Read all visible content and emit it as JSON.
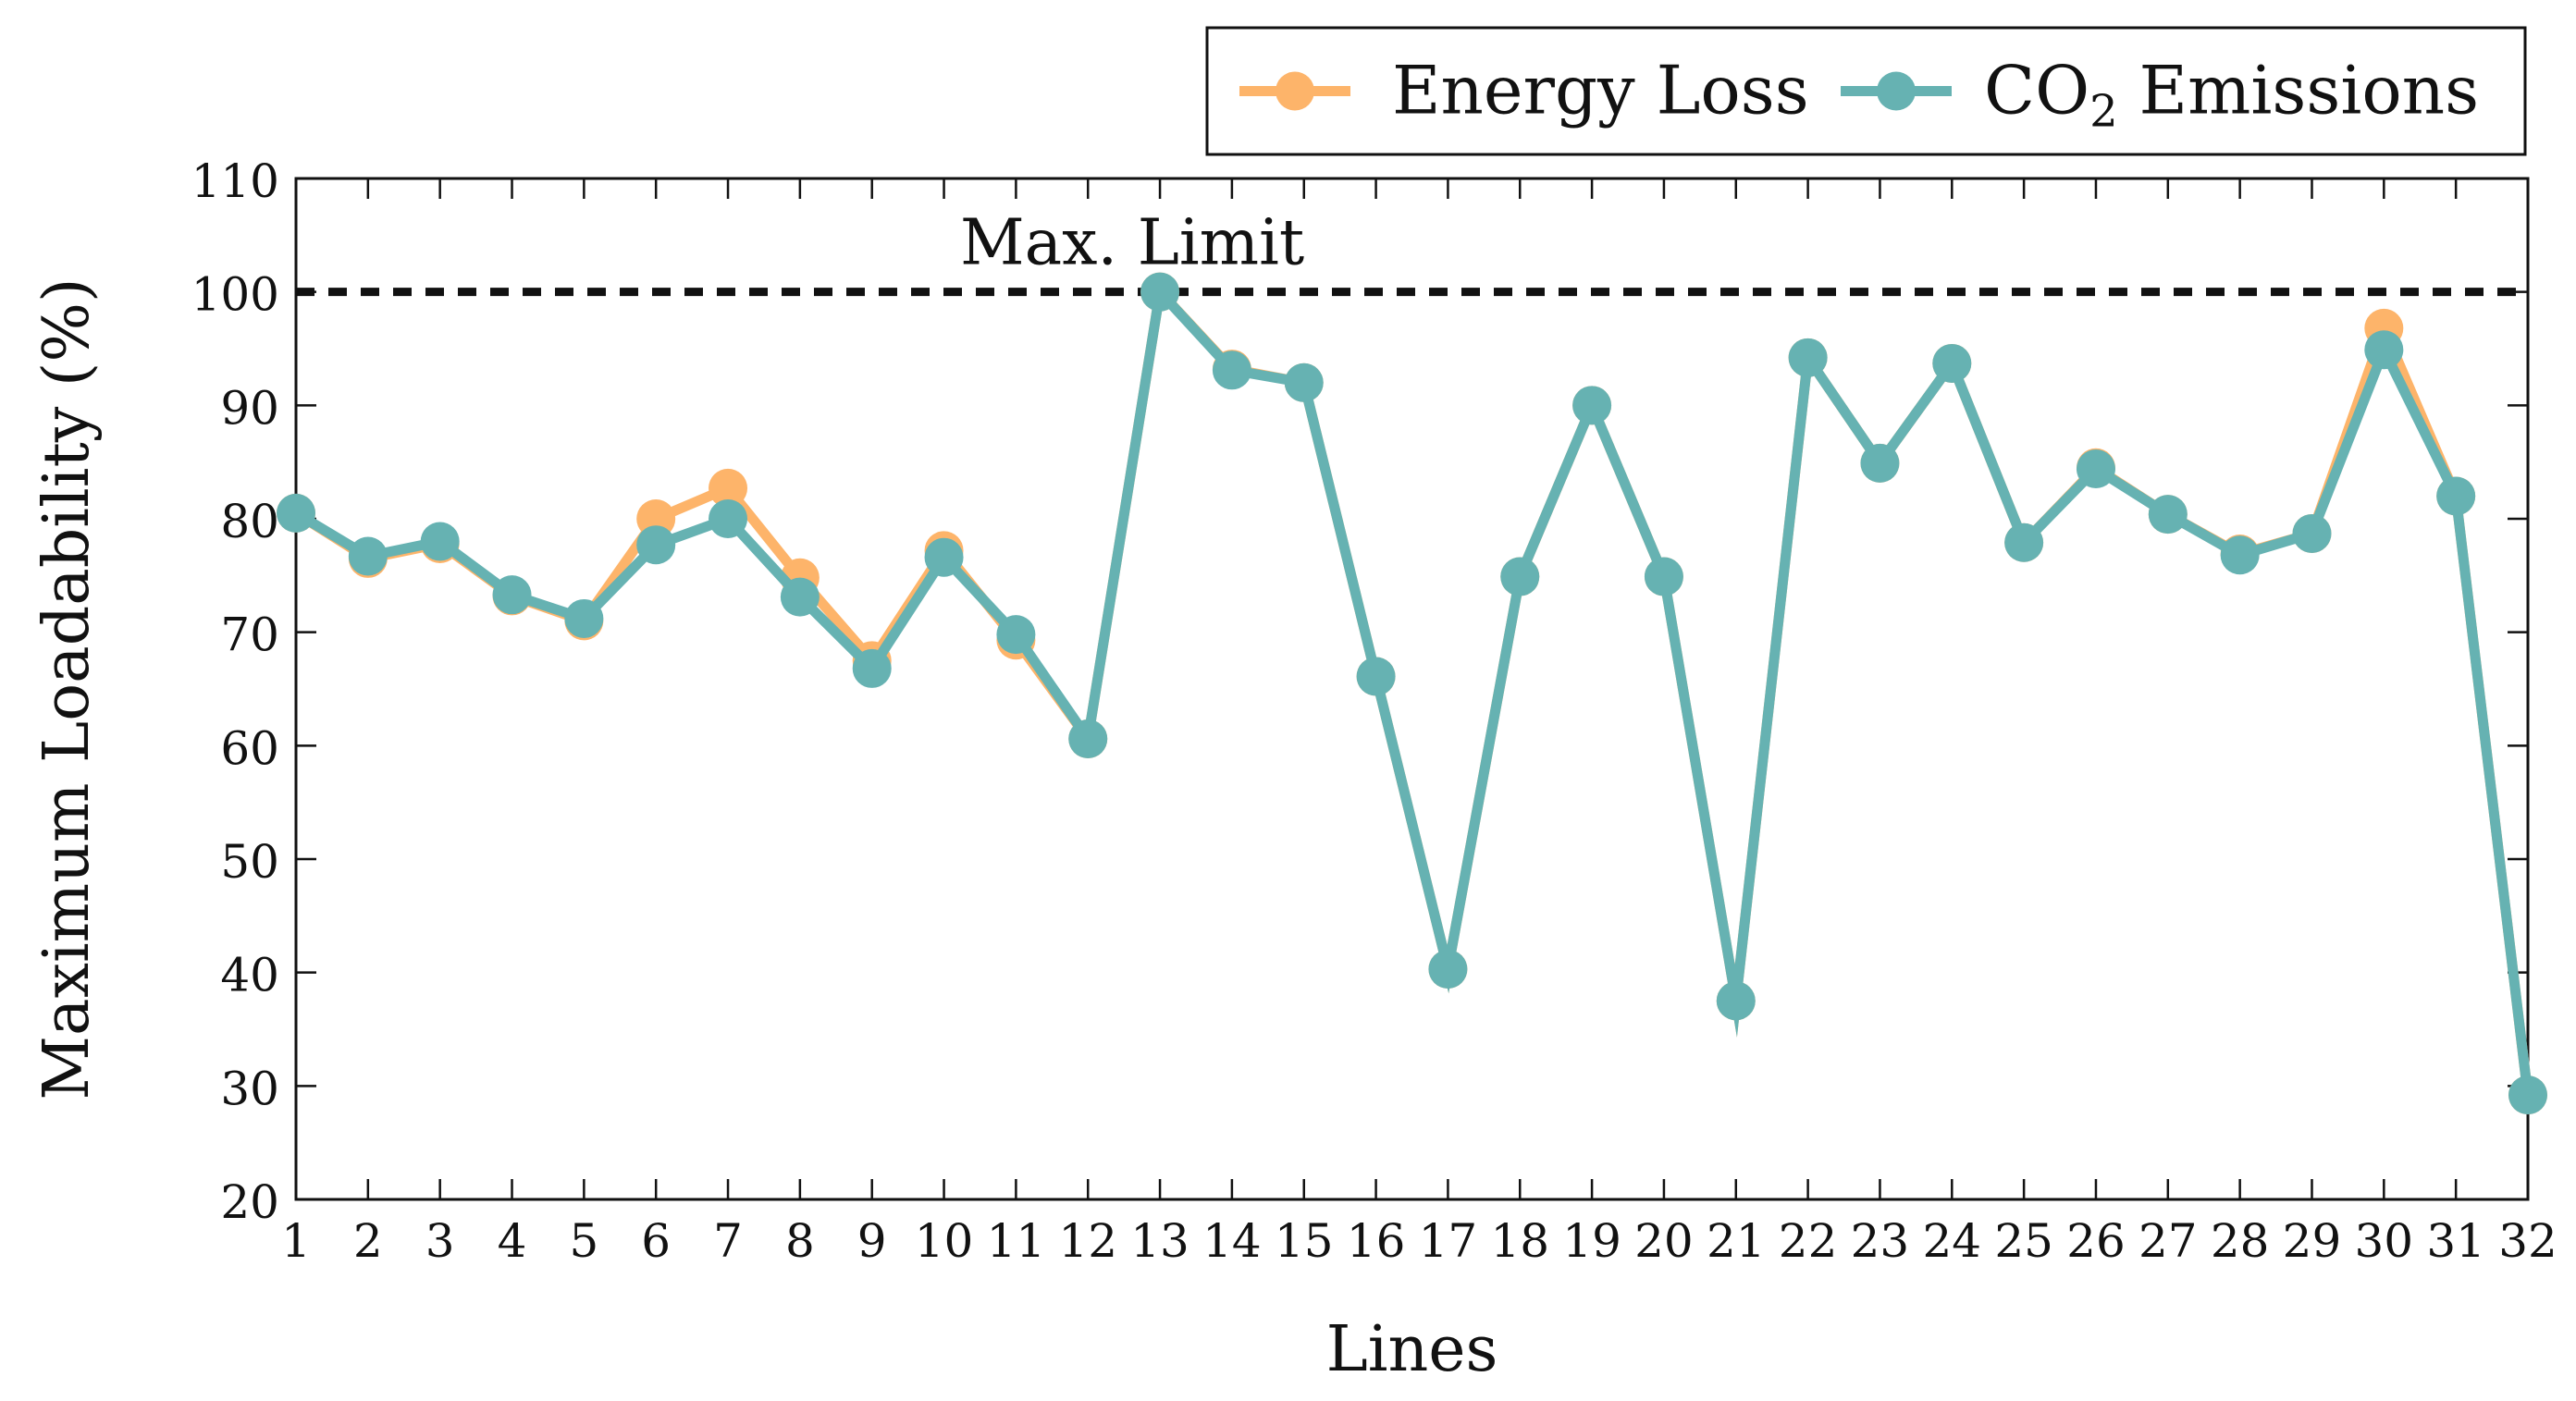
{
  "chart_data": {
    "type": "line",
    "title": "",
    "xlabel": "Lines",
    "ylabel": "Maximum Loadability (%)",
    "ylim": [
      20,
      110
    ],
    "yticks": [
      20,
      30,
      40,
      50,
      60,
      70,
      80,
      90,
      100,
      110
    ],
    "grid": false,
    "legend_position": "top-right, above plot",
    "categories": [
      1,
      2,
      3,
      4,
      5,
      6,
      7,
      8,
      9,
      10,
      11,
      12,
      13,
      14,
      15,
      16,
      17,
      18,
      19,
      20,
      21,
      22,
      23,
      24,
      25,
      26,
      27,
      28,
      29,
      30,
      31,
      32
    ],
    "category_labels": [
      "1",
      "2",
      "3",
      "4",
      "5",
      "6",
      "7",
      "8",
      "9",
      "10",
      "11",
      "12",
      "13",
      "14",
      "15",
      "16",
      "17",
      "18",
      "19",
      "20",
      "21",
      "22",
      "23",
      "24",
      "25",
      "26",
      "27",
      "28",
      "29",
      "30",
      "31",
      "32"
    ],
    "series": [
      {
        "name": "Energy Loss",
        "color": "#FDB46A",
        "values": [
          80.5,
          76.5,
          77.8,
          73.2,
          71.0,
          80.0,
          82.7,
          74.8,
          67.5,
          77.2,
          69.3,
          60.6,
          100.0,
          93.2,
          92.0,
          66.1,
          40.3,
          74.9,
          90.0,
          74.9,
          37.5,
          94.2,
          84.9,
          93.7,
          77.9,
          84.5,
          80.4,
          76.9,
          78.7,
          96.8,
          82.0,
          29.2
        ]
      },
      {
        "name": "CO2 Emissions",
        "legend_main": "CO",
        "legend_sub": "2",
        "legend_rest": " Emissions",
        "color": "#66B2B2",
        "values": [
          80.5,
          76.7,
          78.0,
          73.3,
          71.2,
          77.7,
          80.0,
          73.1,
          66.8,
          76.6,
          69.8,
          60.6,
          100.0,
          93.1,
          92.0,
          66.1,
          40.3,
          74.9,
          90.0,
          74.9,
          37.5,
          94.2,
          84.9,
          93.7,
          77.9,
          84.4,
          80.4,
          76.8,
          78.7,
          94.9,
          82.0,
          29.2
        ]
      }
    ],
    "reference_line": {
      "value": 100,
      "label": "Max. Limit",
      "style": "dashed",
      "color": "#111111"
    }
  }
}
